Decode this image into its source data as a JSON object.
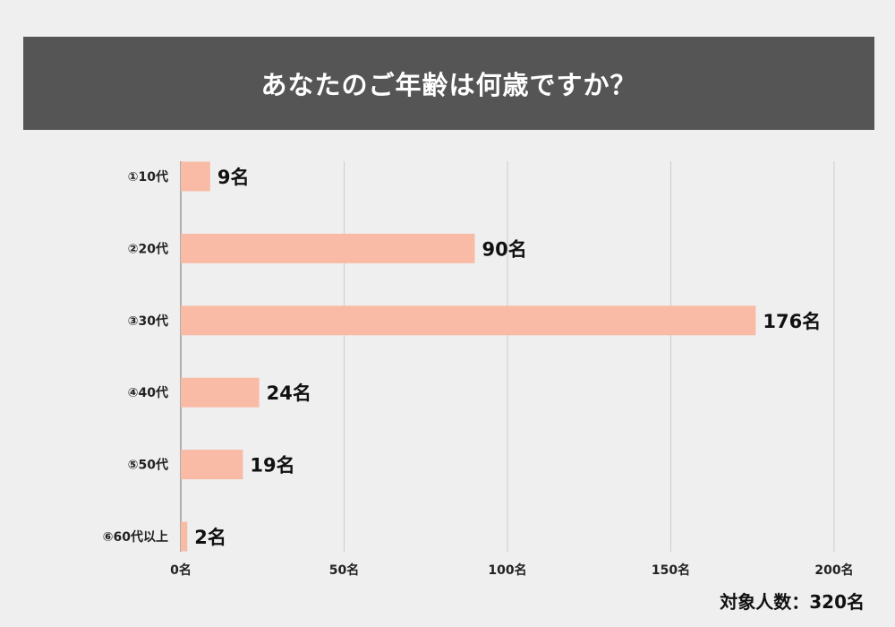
{
  "title": "あなたのご年齢は何歳ですか？",
  "footer": "対象人数：320名",
  "colors": {
    "bar": "#f9bba6",
    "banner": "#555555",
    "grid": "#cccccc",
    "background": "#efefef"
  },
  "chart_data": {
    "type": "bar",
    "orientation": "horizontal",
    "categories": [
      "①10代",
      "②20代",
      "③30代",
      "④40代",
      "⑤50代",
      "⑥60代以上"
    ],
    "values": [
      9,
      90,
      176,
      24,
      19,
      2
    ],
    "data_labels": [
      "9名",
      "90名",
      "176名",
      "24名",
      "19名",
      "2名"
    ],
    "xlim": [
      0,
      200
    ],
    "x_ticks": [
      0,
      50,
      100,
      150,
      200
    ],
    "x_tick_labels": [
      "0名",
      "50名",
      "100名",
      "150名",
      "200名"
    ],
    "grid": true,
    "legend": "none"
  }
}
